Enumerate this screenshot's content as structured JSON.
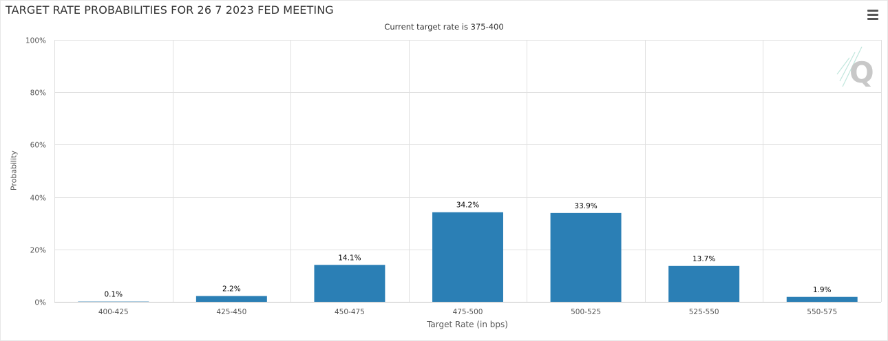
{
  "header": {
    "title": "TARGET RATE PROBABILITIES FOR 26 7 2023 FED MEETING",
    "subtitle": "Current target rate is 375-400",
    "menu_icon": "hamburger-menu-icon",
    "watermark_icon": "quikstrike-q-logo-icon"
  },
  "colors": {
    "bar": "#2b7fb5",
    "grid": "#e0e0e0",
    "axis": "#c0c0c0",
    "text": "#333333"
  },
  "chart_data": {
    "type": "bar",
    "title": "TARGET RATE PROBABILITIES FOR 26 7 2023 FED MEETING",
    "subtitle": "Current target rate is 375-400",
    "xlabel": "Target Rate (in bps)",
    "ylabel": "Probability",
    "categories": [
      "400-425",
      "425-450",
      "450-475",
      "475-500",
      "500-525",
      "525-550",
      "550-575"
    ],
    "values": [
      0.1,
      2.2,
      14.1,
      34.2,
      33.9,
      13.7,
      1.9
    ],
    "data_labels": [
      "0.1%",
      "2.2%",
      "14.1%",
      "34.2%",
      "33.9%",
      "13.7%",
      "1.9%"
    ],
    "ylim": [
      0,
      100
    ],
    "yticks": [
      0,
      20,
      40,
      60,
      80,
      100
    ],
    "ytick_labels": [
      "0%",
      "20%",
      "40%",
      "60%",
      "80%",
      "100%"
    ],
    "grid": true,
    "legend": "none"
  }
}
